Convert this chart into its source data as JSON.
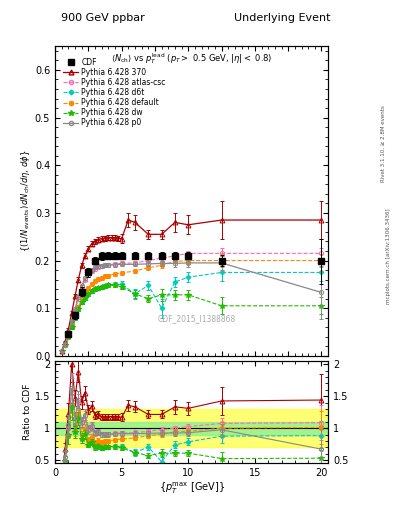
{
  "title_left": "900 GeV ppbar",
  "title_right": "Underlying Event",
  "watermark": "CDF_2015_I1388868",
  "cdf_x": [
    1.0,
    1.5,
    2.0,
    2.5,
    3.0,
    3.5,
    4.0,
    4.5,
    5.0,
    6.0,
    7.0,
    8.0,
    9.0,
    10.0,
    12.5,
    20.0
  ],
  "cdf_y": [
    0.045,
    0.085,
    0.135,
    0.175,
    0.2,
    0.21,
    0.21,
    0.21,
    0.21,
    0.21,
    0.21,
    0.21,
    0.21,
    0.21,
    0.2,
    0.198
  ],
  "cdf_yerr": [
    0.006,
    0.007,
    0.009,
    0.009,
    0.008,
    0.008,
    0.007,
    0.007,
    0.007,
    0.007,
    0.007,
    0.007,
    0.007,
    0.007,
    0.012,
    0.048
  ],
  "p370_x": [
    0.5,
    0.75,
    1.0,
    1.25,
    1.5,
    1.75,
    2.0,
    2.25,
    2.5,
    2.75,
    3.0,
    3.25,
    3.5,
    3.75,
    4.0,
    4.25,
    4.5,
    4.75,
    5.0,
    5.5,
    6.0,
    7.0,
    8.0,
    9.0,
    10.0,
    12.5,
    20.0
  ],
  "p370_y": [
    0.01,
    0.03,
    0.055,
    0.09,
    0.125,
    0.16,
    0.19,
    0.21,
    0.225,
    0.235,
    0.24,
    0.244,
    0.246,
    0.247,
    0.248,
    0.248,
    0.248,
    0.247,
    0.246,
    0.285,
    0.28,
    0.255,
    0.255,
    0.28,
    0.275,
    0.285,
    0.285
  ],
  "p370_yerr": [
    0.001,
    0.002,
    0.003,
    0.004,
    0.004,
    0.005,
    0.005,
    0.005,
    0.005,
    0.005,
    0.005,
    0.005,
    0.005,
    0.005,
    0.005,
    0.005,
    0.005,
    0.005,
    0.01,
    0.015,
    0.015,
    0.01,
    0.01,
    0.02,
    0.02,
    0.04,
    0.04
  ],
  "atlas_x": [
    0.5,
    0.75,
    1.0,
    1.25,
    1.5,
    1.75,
    2.0,
    2.25,
    2.5,
    2.75,
    3.0,
    3.25,
    3.5,
    3.75,
    4.0,
    4.5,
    5.0,
    6.0,
    7.0,
    8.0,
    9.0,
    10.0,
    12.5,
    20.0
  ],
  "atlas_y": [
    0.01,
    0.025,
    0.045,
    0.07,
    0.095,
    0.12,
    0.145,
    0.16,
    0.17,
    0.178,
    0.183,
    0.186,
    0.188,
    0.19,
    0.191,
    0.193,
    0.194,
    0.195,
    0.2,
    0.205,
    0.21,
    0.215,
    0.215,
    0.215
  ],
  "atlas_yerr": [
    0.001,
    0.002,
    0.003,
    0.004,
    0.004,
    0.004,
    0.004,
    0.004,
    0.004,
    0.004,
    0.004,
    0.004,
    0.004,
    0.004,
    0.004,
    0.004,
    0.004,
    0.004,
    0.004,
    0.005,
    0.005,
    0.006,
    0.012,
    0.012
  ],
  "d6t_x": [
    0.5,
    0.75,
    1.0,
    1.25,
    1.5,
    1.75,
    2.0,
    2.25,
    2.5,
    2.75,
    3.0,
    3.25,
    3.5,
    3.75,
    4.0,
    4.5,
    5.0,
    6.0,
    7.0,
    8.0,
    9.0,
    10.0,
    12.5,
    20.0
  ],
  "d6t_y": [
    0.01,
    0.022,
    0.04,
    0.06,
    0.08,
    0.098,
    0.112,
    0.122,
    0.13,
    0.136,
    0.14,
    0.143,
    0.145,
    0.147,
    0.148,
    0.15,
    0.15,
    0.13,
    0.148,
    0.1,
    0.155,
    0.165,
    0.175,
    0.175
  ],
  "d6t_yerr": [
    0.001,
    0.002,
    0.003,
    0.004,
    0.004,
    0.004,
    0.004,
    0.004,
    0.004,
    0.004,
    0.004,
    0.004,
    0.004,
    0.004,
    0.004,
    0.004,
    0.006,
    0.01,
    0.01,
    0.02,
    0.01,
    0.01,
    0.018,
    0.018
  ],
  "default_x": [
    0.5,
    0.75,
    1.0,
    1.25,
    1.5,
    1.75,
    2.0,
    2.25,
    2.5,
    2.75,
    3.0,
    3.25,
    3.5,
    3.75,
    4.0,
    4.5,
    5.0,
    6.0,
    7.0,
    8.0,
    9.0,
    10.0,
    12.5,
    20.0
  ],
  "default_y": [
    0.01,
    0.022,
    0.04,
    0.062,
    0.083,
    0.103,
    0.12,
    0.133,
    0.143,
    0.151,
    0.157,
    0.161,
    0.164,
    0.167,
    0.168,
    0.172,
    0.174,
    0.178,
    0.185,
    0.19,
    0.198,
    0.2,
    0.2,
    0.2
  ],
  "default_yerr": [
    0.001,
    0.002,
    0.003,
    0.004,
    0.004,
    0.004,
    0.004,
    0.004,
    0.004,
    0.004,
    0.004,
    0.004,
    0.004,
    0.004,
    0.004,
    0.004,
    0.004,
    0.004,
    0.005,
    0.006,
    0.007,
    0.008,
    0.014,
    0.014
  ],
  "dw_x": [
    0.5,
    0.75,
    1.0,
    1.25,
    1.5,
    1.75,
    2.0,
    2.25,
    2.5,
    2.75,
    3.0,
    3.25,
    3.5,
    3.75,
    4.0,
    4.5,
    5.0,
    6.0,
    7.0,
    8.0,
    9.0,
    10.0,
    12.5,
    20.0
  ],
  "dw_y": [
    0.01,
    0.022,
    0.04,
    0.06,
    0.08,
    0.098,
    0.112,
    0.122,
    0.13,
    0.136,
    0.14,
    0.143,
    0.145,
    0.147,
    0.148,
    0.148,
    0.145,
    0.13,
    0.12,
    0.128,
    0.128,
    0.128,
    0.105,
    0.105
  ],
  "dw_yerr": [
    0.001,
    0.002,
    0.003,
    0.004,
    0.004,
    0.004,
    0.004,
    0.004,
    0.004,
    0.004,
    0.004,
    0.004,
    0.004,
    0.004,
    0.004,
    0.004,
    0.005,
    0.008,
    0.008,
    0.012,
    0.01,
    0.01,
    0.018,
    0.018
  ],
  "p0_x": [
    0.5,
    0.75,
    1.0,
    1.25,
    1.5,
    1.75,
    2.0,
    2.25,
    2.5,
    2.75,
    3.0,
    3.25,
    3.5,
    3.75,
    4.0,
    4.5,
    5.0,
    6.0,
    7.0,
    8.0,
    9.0,
    10.0,
    12.5,
    20.0
  ],
  "p0_y": [
    0.01,
    0.025,
    0.047,
    0.073,
    0.098,
    0.123,
    0.147,
    0.163,
    0.174,
    0.181,
    0.186,
    0.188,
    0.189,
    0.19,
    0.19,
    0.191,
    0.192,
    0.192,
    0.193,
    0.194,
    0.194,
    0.195,
    0.195,
    0.133
  ],
  "p0_yerr": [
    0.001,
    0.002,
    0.003,
    0.004,
    0.004,
    0.004,
    0.004,
    0.004,
    0.004,
    0.004,
    0.004,
    0.004,
    0.004,
    0.004,
    0.004,
    0.004,
    0.004,
    0.004,
    0.005,
    0.006,
    0.007,
    0.008,
    0.014,
    0.055
  ],
  "colors": {
    "cdf": "#000000",
    "p370": "#aa0000",
    "atlas": "#ff69b4",
    "d6t": "#00ccbb",
    "default": "#ff8800",
    "dw": "#22bb00",
    "p0": "#888888"
  },
  "ylim_main": [
    0.0,
    0.65
  ],
  "ylim_ratio": [
    0.45,
    2.05
  ],
  "xlim": [
    0.0,
    20.5
  ],
  "yticks_main": [
    0.0,
    0.1,
    0.2,
    0.3,
    0.4,
    0.5,
    0.6
  ],
  "yticks_ratio": [
    0.5,
    1.0,
    1.5,
    2.0
  ],
  "xticks": [
    0,
    5,
    10,
    15,
    20
  ]
}
